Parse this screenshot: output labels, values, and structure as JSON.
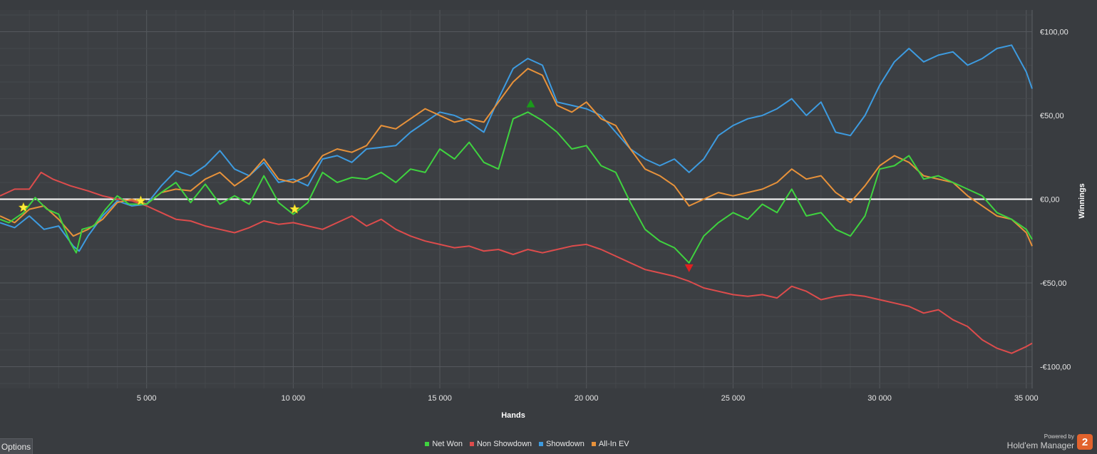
{
  "chart_data": {
    "type": "line",
    "xlabel": "Hands",
    "ylabel": "Winnings",
    "xlim": [
      0,
      35200
    ],
    "ylim": [
      -113,
      113
    ],
    "x_ticks": [
      5000,
      10000,
      15000,
      20000,
      25000,
      30000,
      35000
    ],
    "x_tick_labels": [
      "5 000",
      "10 000",
      "15 000",
      "20 000",
      "25 000",
      "30 000",
      "35 000"
    ],
    "y_ticks": [
      100,
      50,
      0,
      -50,
      -100
    ],
    "y_tick_labels": [
      "€100,00",
      "€50,00",
      "€0,00",
      "-€50,00",
      "-€100,00"
    ],
    "grid": true,
    "zero_line": true,
    "series": [
      {
        "name": "Net Won",
        "color": "#3fd33f",
        "points": [
          [
            0,
            -12
          ],
          [
            300,
            -14
          ],
          [
            800,
            -8
          ],
          [
            1200,
            1
          ],
          [
            1600,
            -6
          ],
          [
            2000,
            -9
          ],
          [
            2400,
            -26
          ],
          [
            2600,
            -32
          ],
          [
            2800,
            -18
          ],
          [
            3200,
            -16
          ],
          [
            3600,
            -6
          ],
          [
            4000,
            2
          ],
          [
            4400,
            -3
          ],
          [
            5000,
            -3
          ],
          [
            5500,
            4
          ],
          [
            6000,
            10
          ],
          [
            6500,
            -2
          ],
          [
            7000,
            9
          ],
          [
            7500,
            -3
          ],
          [
            8000,
            2
          ],
          [
            8500,
            -3
          ],
          [
            9000,
            14
          ],
          [
            9500,
            -2
          ],
          [
            10000,
            -9
          ],
          [
            10500,
            -2
          ],
          [
            11000,
            16
          ],
          [
            11500,
            10
          ],
          [
            12000,
            13
          ],
          [
            12500,
            12
          ],
          [
            13000,
            16
          ],
          [
            13500,
            10
          ],
          [
            14000,
            18
          ],
          [
            14500,
            16
          ],
          [
            15000,
            30
          ],
          [
            15500,
            24
          ],
          [
            16000,
            34
          ],
          [
            16500,
            22
          ],
          [
            17000,
            18
          ],
          [
            17500,
            48
          ],
          [
            18000,
            52
          ],
          [
            18500,
            47
          ],
          [
            19000,
            40
          ],
          [
            19500,
            30
          ],
          [
            20000,
            32
          ],
          [
            20500,
            20
          ],
          [
            21000,
            16
          ],
          [
            21500,
            -2
          ],
          [
            22000,
            -18
          ],
          [
            22500,
            -25
          ],
          [
            23000,
            -29
          ],
          [
            23500,
            -38
          ],
          [
            24000,
            -22
          ],
          [
            24500,
            -14
          ],
          [
            25000,
            -8
          ],
          [
            25500,
            -12
          ],
          [
            26000,
            -3
          ],
          [
            26500,
            -8
          ],
          [
            27000,
            6
          ],
          [
            27500,
            -10
          ],
          [
            28000,
            -8
          ],
          [
            28500,
            -18
          ],
          [
            29000,
            -22
          ],
          [
            29500,
            -10
          ],
          [
            30000,
            18
          ],
          [
            30500,
            20
          ],
          [
            31000,
            26
          ],
          [
            31500,
            12
          ],
          [
            32000,
            14
          ],
          [
            32500,
            10
          ],
          [
            33000,
            6
          ],
          [
            33500,
            2
          ],
          [
            34000,
            -8
          ],
          [
            34500,
            -12
          ],
          [
            35000,
            -18
          ],
          [
            35200,
            -24
          ]
        ]
      },
      {
        "name": "Non Showdown",
        "color": "#dd4c4c",
        "points": [
          [
            0,
            2
          ],
          [
            500,
            6
          ],
          [
            1000,
            6
          ],
          [
            1400,
            16
          ],
          [
            1800,
            12
          ],
          [
            2400,
            8
          ],
          [
            3000,
            5
          ],
          [
            3500,
            2
          ],
          [
            4000,
            0
          ],
          [
            4500,
            -1
          ],
          [
            5000,
            -4
          ],
          [
            5500,
            -8
          ],
          [
            6000,
            -12
          ],
          [
            6500,
            -13
          ],
          [
            7000,
            -16
          ],
          [
            7500,
            -18
          ],
          [
            8000,
            -20
          ],
          [
            8500,
            -17
          ],
          [
            9000,
            -13
          ],
          [
            9500,
            -15
          ],
          [
            10000,
            -14
          ],
          [
            10500,
            -16
          ],
          [
            11000,
            -18
          ],
          [
            11500,
            -14
          ],
          [
            12000,
            -10
          ],
          [
            12500,
            -16
          ],
          [
            13000,
            -12
          ],
          [
            13500,
            -18
          ],
          [
            14000,
            -22
          ],
          [
            14500,
            -25
          ],
          [
            15000,
            -27
          ],
          [
            15500,
            -29
          ],
          [
            16000,
            -28
          ],
          [
            16500,
            -31
          ],
          [
            17000,
            -30
          ],
          [
            17500,
            -33
          ],
          [
            18000,
            -30
          ],
          [
            18500,
            -32
          ],
          [
            19000,
            -30
          ],
          [
            19500,
            -28
          ],
          [
            20000,
            -27
          ],
          [
            20500,
            -30
          ],
          [
            21000,
            -34
          ],
          [
            21500,
            -38
          ],
          [
            22000,
            -42
          ],
          [
            22500,
            -44
          ],
          [
            23000,
            -46
          ],
          [
            23500,
            -49
          ],
          [
            24000,
            -53
          ],
          [
            24500,
            -55
          ],
          [
            25000,
            -57
          ],
          [
            25500,
            -58
          ],
          [
            26000,
            -57
          ],
          [
            26500,
            -59
          ],
          [
            27000,
            -52
          ],
          [
            27500,
            -55
          ],
          [
            28000,
            -60
          ],
          [
            28500,
            -58
          ],
          [
            29000,
            -57
          ],
          [
            29500,
            -58
          ],
          [
            30000,
            -60
          ],
          [
            30500,
            -62
          ],
          [
            31000,
            -64
          ],
          [
            31500,
            -68
          ],
          [
            32000,
            -66
          ],
          [
            32500,
            -72
          ],
          [
            33000,
            -76
          ],
          [
            33500,
            -84
          ],
          [
            34000,
            -89
          ],
          [
            34500,
            -92
          ],
          [
            35000,
            -88
          ],
          [
            35200,
            -86
          ]
        ]
      },
      {
        "name": "Showdown",
        "color": "#3d9be0",
        "points": [
          [
            0,
            -14
          ],
          [
            500,
            -17
          ],
          [
            1000,
            -10
          ],
          [
            1500,
            -18
          ],
          [
            2000,
            -16
          ],
          [
            2500,
            -28
          ],
          [
            2700,
            -31
          ],
          [
            3000,
            -22
          ],
          [
            3500,
            -10
          ],
          [
            4000,
            -1
          ],
          [
            4500,
            -4
          ],
          [
            5000,
            -3
          ],
          [
            5500,
            8
          ],
          [
            6000,
            17
          ],
          [
            6500,
            14
          ],
          [
            7000,
            20
          ],
          [
            7500,
            29
          ],
          [
            8000,
            18
          ],
          [
            8500,
            14
          ],
          [
            9000,
            22
          ],
          [
            9500,
            10
          ],
          [
            10000,
            12
          ],
          [
            10500,
            8
          ],
          [
            11000,
            24
          ],
          [
            11500,
            26
          ],
          [
            12000,
            22
          ],
          [
            12500,
            30
          ],
          [
            13000,
            31
          ],
          [
            13500,
            32
          ],
          [
            14000,
            40
          ],
          [
            14500,
            46
          ],
          [
            15000,
            52
          ],
          [
            15500,
            50
          ],
          [
            16000,
            46
          ],
          [
            16500,
            40
          ],
          [
            17000,
            60
          ],
          [
            17500,
            78
          ],
          [
            18000,
            84
          ],
          [
            18500,
            80
          ],
          [
            19000,
            58
          ],
          [
            19500,
            56
          ],
          [
            20000,
            54
          ],
          [
            20500,
            50
          ],
          [
            21000,
            40
          ],
          [
            21500,
            30
          ],
          [
            22000,
            24
          ],
          [
            22500,
            20
          ],
          [
            23000,
            24
          ],
          [
            23500,
            16
          ],
          [
            24000,
            24
          ],
          [
            24500,
            38
          ],
          [
            25000,
            44
          ],
          [
            25500,
            48
          ],
          [
            26000,
            50
          ],
          [
            26500,
            54
          ],
          [
            27000,
            60
          ],
          [
            27500,
            50
          ],
          [
            28000,
            58
          ],
          [
            28500,
            40
          ],
          [
            29000,
            38
          ],
          [
            29500,
            50
          ],
          [
            30000,
            68
          ],
          [
            30500,
            82
          ],
          [
            31000,
            90
          ],
          [
            31500,
            82
          ],
          [
            32000,
            86
          ],
          [
            32500,
            88
          ],
          [
            33000,
            80
          ],
          [
            33500,
            84
          ],
          [
            34000,
            90
          ],
          [
            34500,
            92
          ],
          [
            35000,
            76
          ],
          [
            35200,
            66
          ]
        ]
      },
      {
        "name": "All-In EV",
        "color": "#e8923a",
        "points": [
          [
            0,
            -10
          ],
          [
            500,
            -14
          ],
          [
            1000,
            -6
          ],
          [
            1500,
            -4
          ],
          [
            2000,
            -12
          ],
          [
            2500,
            -22
          ],
          [
            3000,
            -18
          ],
          [
            3500,
            -12
          ],
          [
            4000,
            -2
          ],
          [
            4500,
            0
          ],
          [
            5000,
            -3
          ],
          [
            5500,
            4
          ],
          [
            6000,
            6
          ],
          [
            6500,
            5
          ],
          [
            7000,
            12
          ],
          [
            7500,
            16
          ],
          [
            8000,
            8
          ],
          [
            8500,
            14
          ],
          [
            9000,
            24
          ],
          [
            9500,
            12
          ],
          [
            10000,
            10
          ],
          [
            10500,
            14
          ],
          [
            11000,
            26
          ],
          [
            11500,
            30
          ],
          [
            12000,
            28
          ],
          [
            12500,
            32
          ],
          [
            13000,
            44
          ],
          [
            13500,
            42
          ],
          [
            14000,
            48
          ],
          [
            14500,
            54
          ],
          [
            15000,
            50
          ],
          [
            15500,
            46
          ],
          [
            16000,
            48
          ],
          [
            16500,
            46
          ],
          [
            17000,
            58
          ],
          [
            17500,
            70
          ],
          [
            18000,
            78
          ],
          [
            18500,
            74
          ],
          [
            19000,
            56
          ],
          [
            19500,
            52
          ],
          [
            20000,
            58
          ],
          [
            20500,
            48
          ],
          [
            21000,
            44
          ],
          [
            21500,
            30
          ],
          [
            22000,
            18
          ],
          [
            22500,
            14
          ],
          [
            23000,
            8
          ],
          [
            23500,
            -4
          ],
          [
            24000,
            0
          ],
          [
            24500,
            4
          ],
          [
            25000,
            2
          ],
          [
            25500,
            4
          ],
          [
            26000,
            6
          ],
          [
            26500,
            10
          ],
          [
            27000,
            18
          ],
          [
            27500,
            12
          ],
          [
            28000,
            14
          ],
          [
            28500,
            4
          ],
          [
            29000,
            -2
          ],
          [
            29500,
            8
          ],
          [
            30000,
            20
          ],
          [
            30500,
            26
          ],
          [
            31000,
            22
          ],
          [
            31500,
            14
          ],
          [
            32000,
            12
          ],
          [
            32500,
            10
          ],
          [
            33000,
            2
          ],
          [
            33500,
            -4
          ],
          [
            34000,
            -10
          ],
          [
            34500,
            -12
          ],
          [
            35000,
            -20
          ],
          [
            35200,
            -28
          ]
        ]
      }
    ],
    "annotations": [
      {
        "type": "star",
        "x": 800,
        "y": -5
      },
      {
        "type": "star",
        "x": 4800,
        "y": -1
      },
      {
        "type": "star",
        "x": 10050,
        "y": -6
      },
      {
        "type": "max-marker",
        "x": 18100,
        "y": 57
      },
      {
        "type": "min-marker",
        "x": 23500,
        "y": -41
      }
    ]
  },
  "ui": {
    "options_label": "Options",
    "legend": [
      {
        "label": "Net Won",
        "color": "#3fd33f"
      },
      {
        "label": "Non Showdown",
        "color": "#dd4c4c"
      },
      {
        "label": "Showdown",
        "color": "#3d9be0"
      },
      {
        "label": "All-In EV",
        "color": "#e8923a"
      }
    ],
    "brand_powered": "Powered by",
    "brand_name": "Hold'em Manager",
    "brand_logo_text": "2"
  }
}
